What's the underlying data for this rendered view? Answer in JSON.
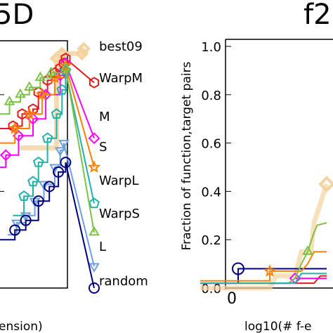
{
  "chart_data": [
    {
      "type": "line",
      "panel": "left",
      "title_fragment": "5D",
      "xlabel_fragment": "ension)",
      "series": [
        {
          "name": "best09",
          "color": "#f5d3a0",
          "marker": "diamond",
          "points": [
            [
              1.2,
              0.58
            ],
            [
              3.2,
              0.95
            ],
            [
              3.5,
              0.97
            ],
            [
              4.6,
              0.97
            ],
            [
              4.7,
              0.99
            ]
          ]
        },
        {
          "name": "WarpM",
          "color": "#e41a1c",
          "marker": "hexagon",
          "points": [
            [
              0.0,
              0.66
            ],
            [
              0.8,
              0.67
            ],
            [
              1.3,
              0.72
            ],
            [
              1.9,
              0.74
            ],
            [
              2.2,
              0.81
            ],
            [
              2.7,
              0.86
            ],
            [
              3.1,
              0.89
            ],
            [
              3.4,
              0.91
            ],
            [
              3.6,
              0.93
            ],
            [
              3.7,
              0.95
            ],
            [
              4.8,
              0.85
            ]
          ]
        },
        {
          "name": "M",
          "color": "#ff00ff",
          "marker": "diamond",
          "points": [
            [
              0.0,
              0.5
            ],
            [
              0.4,
              0.55
            ],
            [
              1.1,
              0.63
            ],
            [
              1.9,
              0.7
            ],
            [
              2.6,
              0.8
            ],
            [
              3.4,
              0.88
            ],
            [
              3.7,
              0.93
            ],
            [
              4.8,
              0.62
            ]
          ]
        },
        {
          "name": "S",
          "color": "#ff7f00",
          "marker": "star",
          "points": [
            [
              0.0,
              0.6
            ],
            [
              0.9,
              0.66
            ],
            [
              1.7,
              0.72
            ],
            [
              2.4,
              0.8
            ],
            [
              3.1,
              0.87
            ],
            [
              3.7,
              0.92
            ],
            [
              4.8,
              0.5
            ]
          ]
        },
        {
          "name": "WarpL",
          "color": "#20b2aa",
          "marker": "pentagon",
          "points": [
            [
              0.8,
              0.3
            ],
            [
              1.4,
              0.38
            ],
            [
              1.9,
              0.44
            ],
            [
              2.2,
              0.52
            ],
            [
              2.7,
              0.62
            ],
            [
              3.2,
              0.72
            ],
            [
              3.5,
              0.82
            ],
            [
              3.7,
              0.9
            ],
            [
              4.8,
              0.35
            ]
          ]
        },
        {
          "name": "WarpS",
          "color": "#7dc242",
          "marker": "triangle-up",
          "points": [
            [
              0.0,
              0.72
            ],
            [
              0.6,
              0.77
            ],
            [
              1.2,
              0.8
            ],
            [
              1.7,
              0.83
            ],
            [
              2.3,
              0.87
            ],
            [
              2.9,
              0.89
            ],
            [
              3.7,
              0.91
            ],
            [
              4.8,
              0.23
            ]
          ]
        },
        {
          "name": "L",
          "color": "#6ca0dc",
          "marker": "triangle-down",
          "points": [
            [
              0.5,
              0.22
            ],
            [
              1.0,
              0.27
            ],
            [
              1.5,
              0.3
            ],
            [
              2.0,
              0.36
            ],
            [
              2.5,
              0.43
            ],
            [
              3.1,
              0.5
            ],
            [
              3.4,
              0.57
            ],
            [
              3.6,
              0.6
            ],
            [
              4.8,
              0.09
            ]
          ]
        },
        {
          "name": "random",
          "color": "#000080",
          "marker": "circle",
          "points": [
            [
              0.0,
              0.2
            ],
            [
              0.9,
              0.24
            ],
            [
              1.5,
              0.28
            ],
            [
              2.2,
              0.36
            ],
            [
              2.8,
              0.42
            ],
            [
              3.3,
              0.48
            ],
            [
              3.7,
              0.52
            ],
            [
              4.8,
              0.0
            ]
          ]
        }
      ]
    },
    {
      "type": "line",
      "panel": "right",
      "title_fragment": "f2",
      "xlabel_fragment": "log10(# f-e",
      "ylabel": "Fraction of function,target pairs",
      "yticks": [
        "0.0",
        "0.2",
        "0.4",
        "0.6",
        "0.8",
        "1.0"
      ],
      "xticks": [
        "0"
      ],
      "ylim": [
        0,
        1
      ],
      "series": [
        {
          "name": "best09",
          "color": "#f5d3a0",
          "points": [
            [
              -0.5,
              0.0
            ],
            [
              0.6,
              0.0
            ],
            [
              0.7,
              0.05
            ],
            [
              1.0,
              0.05
            ],
            [
              1.1,
              0.15
            ],
            [
              1.25,
              0.15
            ],
            [
              1.3,
              0.27
            ],
            [
              1.5,
              0.43
            ]
          ]
        },
        {
          "name": "random",
          "color": "#000080",
          "points": [
            [
              -0.5,
              0.02
            ],
            [
              0.1,
              0.02
            ],
            [
              0.1,
              0.08
            ],
            [
              0.6,
              0.08
            ],
            [
              1.0,
              0.08
            ],
            [
              1.2,
              0.08
            ],
            [
              1.5,
              0.08
            ]
          ]
        },
        {
          "name": "WarpM",
          "color": "#e41a1c",
          "points": [
            [
              -0.5,
              0.02
            ],
            [
              0.8,
              0.02
            ],
            [
              1.3,
              0.02
            ],
            [
              1.4,
              0.05
            ],
            [
              1.5,
              0.05
            ]
          ]
        },
        {
          "name": "M",
          "color": "#ff00ff",
          "points": [
            [
              -0.5,
              0.02
            ],
            [
              0.9,
              0.02
            ],
            [
              1.0,
              0.04
            ],
            [
              1.3,
              0.04
            ],
            [
              1.5,
              0.04
            ]
          ]
        },
        {
          "name": "S",
          "color": "#ff7f00",
          "points": [
            [
              -0.5,
              0.03
            ],
            [
              0.6,
              0.03
            ],
            [
              0.6,
              0.07
            ],
            [
              1.1,
              0.07
            ],
            [
              1.2,
              0.1
            ],
            [
              1.3,
              0.15
            ],
            [
              1.5,
              0.15
            ]
          ]
        },
        {
          "name": "WarpS",
          "color": "#7dc242",
          "points": [
            [
              -0.5,
              0.02
            ],
            [
              0.9,
              0.02
            ],
            [
              1.0,
              0.04
            ],
            [
              1.1,
              0.1
            ],
            [
              1.2,
              0.15
            ],
            [
              1.3,
              0.23
            ],
            [
              1.35,
              0.26
            ],
            [
              1.5,
              0.27
            ]
          ]
        },
        {
          "name": "WarpL",
          "color": "#20b2aa",
          "points": [
            [
              -0.5,
              0.02
            ],
            [
              1.0,
              0.02
            ],
            [
              1.1,
              0.06
            ],
            [
              1.3,
              0.06
            ],
            [
              1.5,
              0.06
            ]
          ]
        }
      ]
    }
  ]
}
